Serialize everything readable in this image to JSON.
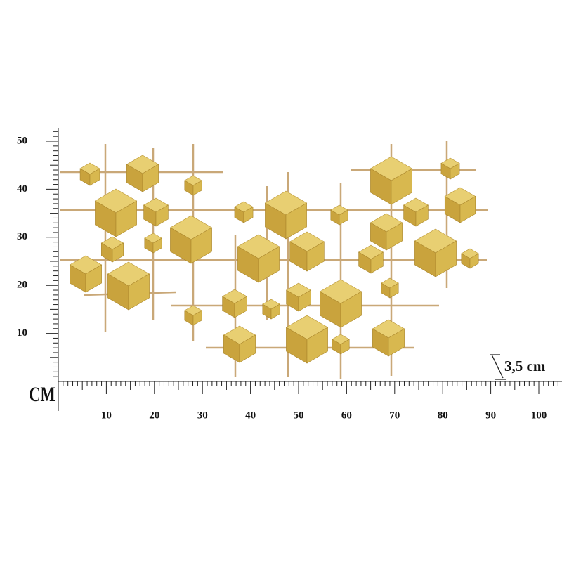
{
  "unit": "CM",
  "horizontal_ruler": {
    "labels": [
      10,
      20,
      30,
      40,
      50,
      60,
      70,
      80,
      90,
      100
    ]
  },
  "vertical_ruler": {
    "labels": [
      10,
      20,
      30,
      40,
      50
    ]
  },
  "depth_label": "3,5 cm"
}
